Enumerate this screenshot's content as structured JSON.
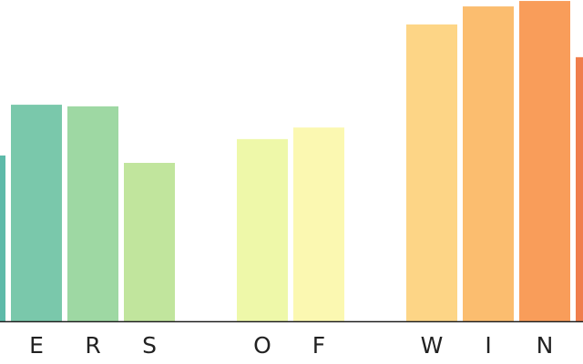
{
  "chart_data": {
    "type": "bar",
    "categories": [
      null,
      "E",
      "R",
      "S",
      null,
      "O",
      "F",
      null,
      "W",
      "I",
      "N",
      null
    ],
    "values": [
      51.6,
      67.4,
      66.9,
      49.3,
      null,
      56.7,
      60.3,
      null,
      92.4,
      98.0,
      99.7,
      82.2
    ],
    "colors": [
      "#5dbaa9",
      "#7ac8ab",
      "#9ed8a3",
      "#c1e59d",
      null,
      "#eef8a9",
      "#fbf8b1",
      null,
      "#fdd586",
      "#fbbd6f",
      "#f99d5a",
      "#f07e4c"
    ],
    "ylim": [
      0,
      100
    ]
  }
}
